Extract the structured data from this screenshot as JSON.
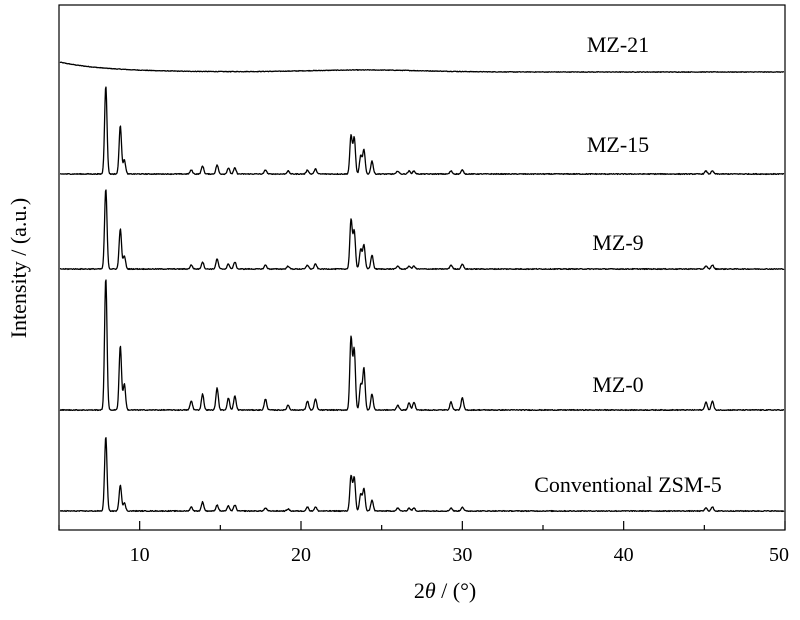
{
  "chart_data": {
    "type": "line",
    "xlabel_prefix": "2",
    "xlabel_var": "θ",
    "xlabel_suffix": " / (°)",
    "ylabel": "Intensity / (a.u.)",
    "xlim": [
      5,
      50
    ],
    "xticks": [
      "10",
      "20",
      "30",
      "40",
      "50"
    ],
    "grid": false,
    "y_units": "arbitrary (stacked, offset)",
    "series": [
      {
        "name": "MZ-21",
        "color": "#000000",
        "baseline": 0.0,
        "hump": true,
        "peaks": []
      },
      {
        "name": "MZ-15",
        "color": "#000000",
        "peaks": [
          [
            7.9,
            88
          ],
          [
            8.8,
            48
          ],
          [
            9.05,
            14
          ],
          [
            13.2,
            4
          ],
          [
            13.9,
            8
          ],
          [
            14.8,
            9
          ],
          [
            15.5,
            6
          ],
          [
            15.9,
            6
          ],
          [
            17.8,
            4
          ],
          [
            19.2,
            3
          ],
          [
            20.4,
            4
          ],
          [
            20.9,
            5
          ],
          [
            23.1,
            38
          ],
          [
            23.3,
            36
          ],
          [
            23.7,
            18
          ],
          [
            23.9,
            24
          ],
          [
            24.4,
            13
          ],
          [
            26.0,
            3
          ],
          [
            26.7,
            3
          ],
          [
            27.0,
            3
          ],
          [
            29.3,
            3
          ],
          [
            30.0,
            4
          ],
          [
            45.1,
            3
          ],
          [
            45.5,
            3
          ]
        ]
      },
      {
        "name": "MZ-9",
        "color": "#000000",
        "peaks": [
          [
            7.9,
            80
          ],
          [
            8.8,
            40
          ],
          [
            9.05,
            13
          ],
          [
            13.2,
            4
          ],
          [
            13.9,
            7
          ],
          [
            14.8,
            10
          ],
          [
            15.5,
            5
          ],
          [
            15.9,
            7
          ],
          [
            17.8,
            4
          ],
          [
            19.2,
            3
          ],
          [
            20.4,
            4
          ],
          [
            20.9,
            5
          ],
          [
            23.1,
            49
          ],
          [
            23.3,
            38
          ],
          [
            23.7,
            20
          ],
          [
            23.9,
            24
          ],
          [
            24.4,
            14
          ],
          [
            26.0,
            3
          ],
          [
            26.7,
            3
          ],
          [
            27.0,
            3
          ],
          [
            29.3,
            4
          ],
          [
            30.0,
            5
          ],
          [
            45.1,
            3
          ],
          [
            45.5,
            4
          ]
        ]
      },
      {
        "name": "MZ-0",
        "color": "#000000",
        "peaks": [
          [
            7.9,
            132
          ],
          [
            8.8,
            64
          ],
          [
            9.05,
            26
          ],
          [
            13.2,
            9
          ],
          [
            13.9,
            16
          ],
          [
            14.8,
            22
          ],
          [
            15.5,
            12
          ],
          [
            15.9,
            14
          ],
          [
            17.8,
            11
          ],
          [
            19.2,
            5
          ],
          [
            20.4,
            9
          ],
          [
            20.9,
            11
          ],
          [
            23.1,
            72
          ],
          [
            23.3,
            60
          ],
          [
            23.7,
            25
          ],
          [
            23.9,
            42
          ],
          [
            24.4,
            16
          ],
          [
            26.0,
            5
          ],
          [
            26.7,
            7
          ],
          [
            27.0,
            8
          ],
          [
            29.3,
            8
          ],
          [
            30.0,
            12
          ],
          [
            45.1,
            8
          ],
          [
            45.5,
            9
          ]
        ]
      },
      {
        "name": "Conventional ZSM-5",
        "color": "#000000",
        "peaks": [
          [
            7.9,
            74
          ],
          [
            8.8,
            26
          ],
          [
            9.05,
            8
          ],
          [
            13.2,
            4
          ],
          [
            13.9,
            9
          ],
          [
            14.8,
            6
          ],
          [
            15.5,
            5
          ],
          [
            15.9,
            6
          ],
          [
            17.8,
            3
          ],
          [
            19.2,
            2
          ],
          [
            20.4,
            4
          ],
          [
            20.9,
            4
          ],
          [
            23.1,
            35
          ],
          [
            23.3,
            33
          ],
          [
            23.7,
            17
          ],
          [
            23.9,
            22
          ],
          [
            24.4,
            11
          ],
          [
            26.0,
            3
          ],
          [
            26.7,
            3
          ],
          [
            27.0,
            3
          ],
          [
            29.3,
            3
          ],
          [
            30.0,
            4
          ],
          [
            45.1,
            3
          ],
          [
            45.5,
            4
          ]
        ]
      }
    ]
  }
}
